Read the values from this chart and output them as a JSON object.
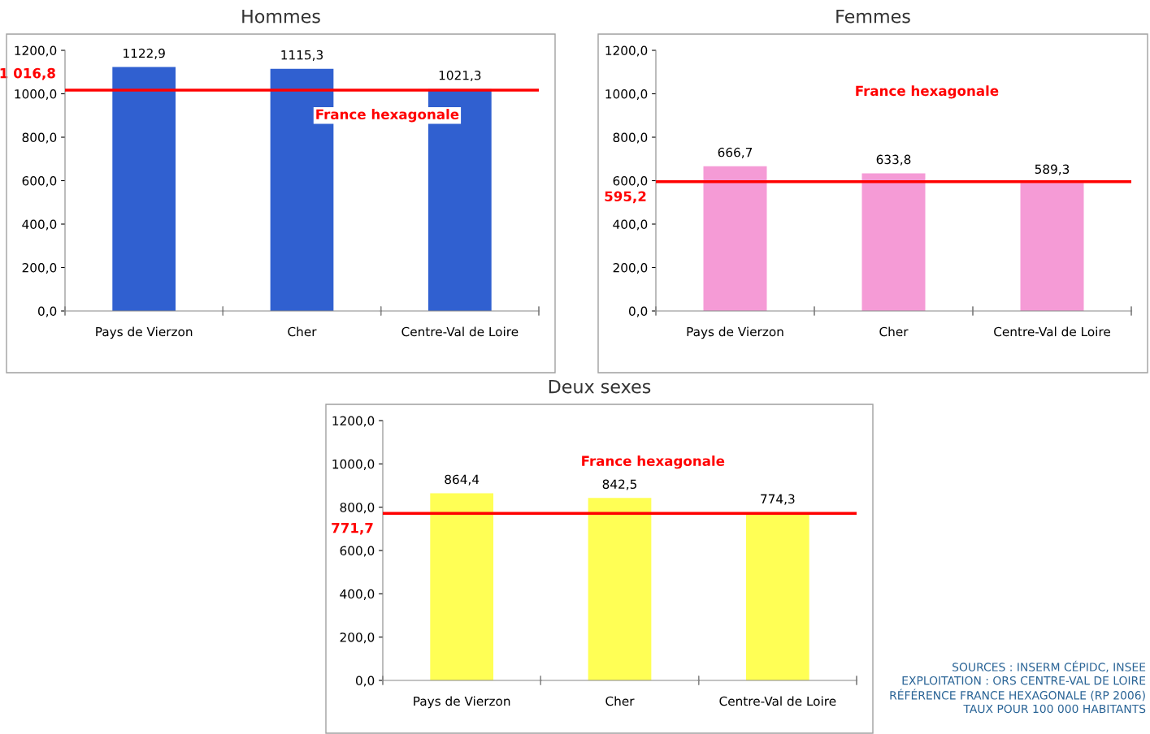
{
  "chart_data": [
    {
      "type": "bar",
      "title": "Hommes",
      "categories": [
        "Pays de Vierzon",
        "Cher",
        "Centre-Val de Loire"
      ],
      "series": [
        {
          "color": "#3060d0",
          "values": [
            1122.9,
            1115.3,
            1021.3
          ]
        }
      ],
      "value_labels": [
        "1122,9",
        "1115,3",
        "1021,3"
      ],
      "ylim": [
        0,
        1200
      ],
      "yticks": [
        {
          "value": 0,
          "label": "0,0"
        },
        {
          "value": 200,
          "label": "200,0"
        },
        {
          "value": 400,
          "label": "400,0"
        },
        {
          "value": 600,
          "label": "600,0"
        },
        {
          "value": 800,
          "label": "800,0"
        },
        {
          "value": 1000,
          "label": "1000,0"
        },
        {
          "value": 1200,
          "label": "1200,0"
        }
      ],
      "ref_lines": [
        {
          "axis": "y",
          "value": 1016.8,
          "label": "France hexagonale",
          "color": "#ff0000"
        }
      ],
      "annotations": [
        "1 016,8"
      ],
      "grid": false,
      "legend": false
    },
    {
      "type": "bar",
      "title": "Femmes",
      "categories": [
        "Pays de Vierzon",
        "Cher",
        "Centre-Val de Loire"
      ],
      "series": [
        {
          "color": "#f59bd6",
          "values": [
            666.7,
            633.8,
            589.3
          ]
        }
      ],
      "value_labels": [
        "666,7",
        "633,8",
        "589,3"
      ],
      "ylim": [
        0,
        1200
      ],
      "yticks": [
        {
          "value": 0,
          "label": "0,0"
        },
        {
          "value": 200,
          "label": "200,0"
        },
        {
          "value": 400,
          "label": "400,0"
        },
        {
          "value": 600,
          "label": "600,0"
        },
        {
          "value": 800,
          "label": "800,0"
        },
        {
          "value": 1000,
          "label": "1000,0"
        },
        {
          "value": 1200,
          "label": "1200,0"
        }
      ],
      "ref_lines": [
        {
          "axis": "y",
          "value": 595.2,
          "label": "France hexagonale",
          "color": "#ff0000"
        }
      ],
      "annotations": [
        "595,2"
      ],
      "grid": false,
      "legend": false
    },
    {
      "type": "bar",
      "title": "Deux sexes",
      "categories": [
        "Pays de Vierzon",
        "Cher",
        "Centre-Val de Loire"
      ],
      "series": [
        {
          "color": "#ffff55",
          "values": [
            864.4,
            842.5,
            774.3
          ]
        }
      ],
      "value_labels": [
        "864,4",
        "842,5",
        "774,3"
      ],
      "ylim": [
        0,
        1200
      ],
      "yticks": [
        {
          "value": 0,
          "label": "0,0"
        },
        {
          "value": 200,
          "label": "200,0"
        },
        {
          "value": 400,
          "label": "400,0"
        },
        {
          "value": 600,
          "label": "600,0"
        },
        {
          "value": 800,
          "label": "800,0"
        },
        {
          "value": 1000,
          "label": "1000,0"
        },
        {
          "value": 1200,
          "label": "1200,0"
        }
      ],
      "ref_lines": [
        {
          "axis": "y",
          "value": 771.7,
          "label": "France hexagonale",
          "color": "#ff0000"
        }
      ],
      "annotations": [
        "771,7",
        "SOURCES : INSERM CÉPIDC, INSEE\nEXPLOITATION : ORS CENTRE-VAL DE LOIRE\nRÉFÉRENCE FRANCE HEXAGONALE (RP 2006)\nTAUX POUR 100 000 HABITANTS"
      ],
      "grid": false,
      "legend": false
    }
  ]
}
